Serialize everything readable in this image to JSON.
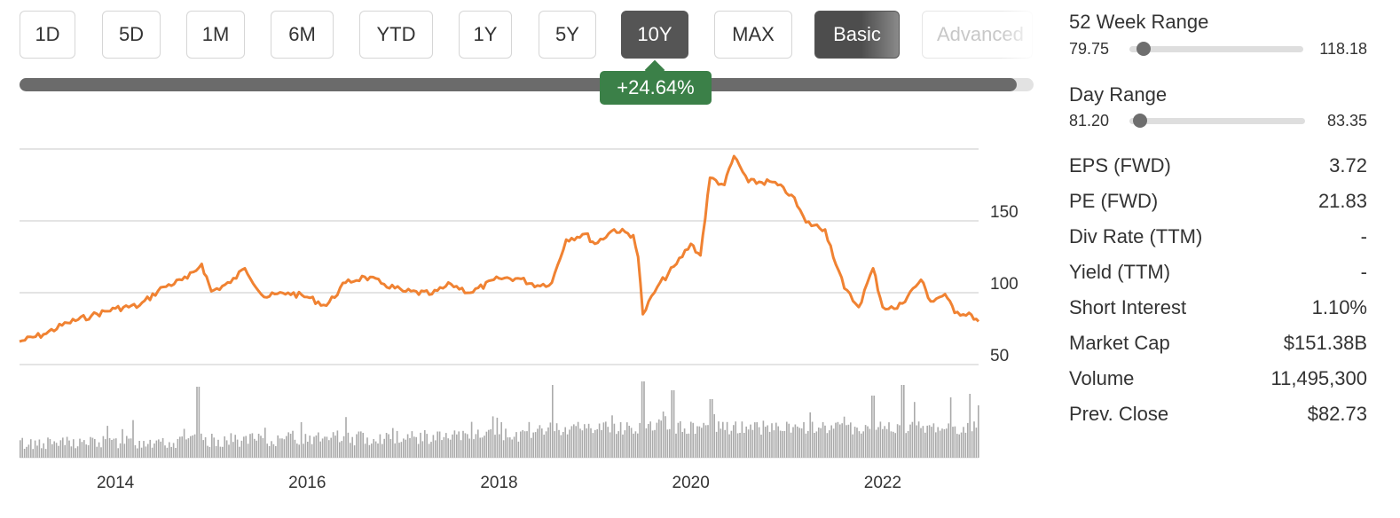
{
  "timeframes": [
    "1D",
    "5D",
    "1M",
    "6M",
    "YTD",
    "1Y",
    "5Y",
    "10Y",
    "MAX"
  ],
  "active_timeframe": "10Y",
  "mode_buttons": {
    "basic": "Basic",
    "advanced": "Advanced"
  },
  "period_change": "+24.64%",
  "colors": {
    "price_line": "#f08232",
    "volume": "#aaaaaa",
    "positive": "#3b8048",
    "active_button": "#555555"
  },
  "stats": {
    "week52": {
      "label": "52 Week Range",
      "low": "79.75",
      "high": "118.18"
    },
    "day": {
      "label": "Day Range",
      "low": "81.20",
      "high": "83.35"
    },
    "rows": [
      {
        "label": "EPS (FWD)",
        "value": "3.72"
      },
      {
        "label": "PE (FWD)",
        "value": "21.83"
      },
      {
        "label": "Div Rate (TTM)",
        "value": "-"
      },
      {
        "label": "Yield (TTM)",
        "value": "-"
      },
      {
        "label": "Short Interest",
        "value": "1.10%"
      },
      {
        "label": "Market Cap",
        "value": "$151.38B"
      },
      {
        "label": "Volume",
        "value": "11,495,300"
      },
      {
        "label": "Prev. Close",
        "value": "$82.73"
      }
    ]
  },
  "chart_data": {
    "type": "line",
    "title": "",
    "xlabel": "",
    "ylabel": "",
    "ylim": [
      50,
      200
    ],
    "xlim": [
      2013.0,
      2023.0
    ],
    "y_ticks": [
      50,
      100,
      150
    ],
    "y_tick_labels": [
      "50",
      "100",
      "150"
    ],
    "x_ticks": [
      2014,
      2016,
      2018,
      2020,
      2022
    ],
    "x_tick_labels": [
      "2014",
      "2016",
      "2018",
      "2020",
      "2022"
    ],
    "grid": true,
    "series": [
      {
        "values": [
          [
            2013.0,
            66
          ],
          [
            2013.25,
            71
          ],
          [
            2013.5,
            79
          ],
          [
            2013.75,
            84
          ],
          [
            2014.0,
            89
          ],
          [
            2014.25,
            91
          ],
          [
            2014.5,
            104
          ],
          [
            2014.75,
            110
          ],
          [
            2014.9,
            120
          ],
          [
            2015.0,
            101
          ],
          [
            2015.2,
            107
          ],
          [
            2015.35,
            117
          ],
          [
            2015.55,
            97
          ],
          [
            2015.8,
            100
          ],
          [
            2016.0,
            97
          ],
          [
            2016.2,
            91
          ],
          [
            2016.4,
            107
          ],
          [
            2016.6,
            111
          ],
          [
            2016.8,
            106
          ],
          [
            2017.0,
            101
          ],
          [
            2017.3,
            99
          ],
          [
            2017.5,
            106
          ],
          [
            2017.7,
            100
          ],
          [
            2018.0,
            110
          ],
          [
            2018.2,
            110
          ],
          [
            2018.4,
            105
          ],
          [
            2018.55,
            107
          ],
          [
            2018.7,
            137
          ],
          [
            2018.9,
            141
          ],
          [
            2019.0,
            134
          ],
          [
            2019.2,
            144
          ],
          [
            2019.4,
            140
          ],
          [
            2019.45,
            125
          ],
          [
            2019.5,
            85
          ],
          [
            2019.65,
            104
          ],
          [
            2019.85,
            120
          ],
          [
            2020.0,
            134
          ],
          [
            2020.1,
            126
          ],
          [
            2020.2,
            180
          ],
          [
            2020.35,
            175
          ],
          [
            2020.45,
            195
          ],
          [
            2020.6,
            177
          ],
          [
            2020.85,
            177
          ],
          [
            2021.05,
            168
          ],
          [
            2021.2,
            149
          ],
          [
            2021.4,
            144
          ],
          [
            2021.6,
            103
          ],
          [
            2021.75,
            90
          ],
          [
            2021.9,
            117
          ],
          [
            2022.0,
            90
          ],
          [
            2022.15,
            89
          ],
          [
            2022.4,
            109
          ],
          [
            2022.5,
            94
          ],
          [
            2022.65,
            99
          ],
          [
            2022.75,
            86
          ],
          [
            2022.9,
            86
          ],
          [
            2023.0,
            80
          ]
        ]
      }
    ],
    "volume_bars": true
  }
}
